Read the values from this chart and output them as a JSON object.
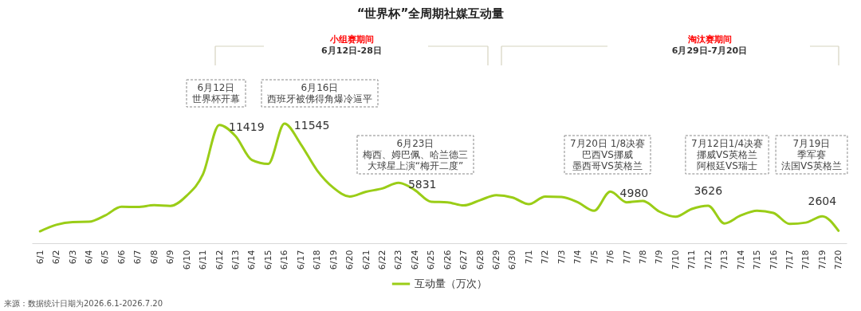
{
  "chart_data": {
    "type": "line",
    "title": "“世界杯”全周期社媒互动量",
    "categories": [
      "6/1",
      "6/2",
      "6/3",
      "6/4",
      "6/5",
      "6/6",
      "6/7",
      "6/8",
      "6/9",
      "6/10",
      "6/11",
      "6/12",
      "6/13",
      "6/14",
      "6/15",
      "6/16",
      "6/17",
      "6/18",
      "6/19",
      "6/20",
      "6/21",
      "6/22",
      "6/23",
      "6/24",
      "6/25",
      "6/26",
      "6/27",
      "6/28",
      "6/29",
      "6/30",
      "7/1",
      "7/2",
      "7/3",
      "7/4",
      "7/5",
      "7/6",
      "7/7",
      "7/8",
      "7/9",
      "7/10",
      "7/11",
      "7/12",
      "7/13",
      "7/14",
      "7/15",
      "7/16",
      "7/17",
      "7/18",
      "7/19",
      "7/20"
    ],
    "series": [
      {
        "name": "互动量（万次）",
        "color": "#9acd17",
        "values": [
          1150,
          1780,
          2040,
          2070,
          2680,
          3520,
          3500,
          3670,
          3600,
          4590,
          6660,
          11419,
          10330,
          8030,
          7650,
          11545,
          9560,
          7040,
          5360,
          4510,
          4970,
          5280,
          5831,
          5130,
          4000,
          3950,
          3650,
          4150,
          4640,
          4410,
          3770,
          4510,
          4460,
          3950,
          3140,
          4980,
          3950,
          4080,
          3060,
          2550,
          3310,
          3626,
          1910,
          2680,
          3140,
          2930,
          1860,
          1990,
          2604,
          1200
        ],
        "value_labels": [
          null,
          null,
          null,
          null,
          null,
          null,
          null,
          null,
          null,
          null,
          null,
          "11419",
          null,
          null,
          null,
          "11545",
          null,
          null,
          null,
          null,
          null,
          null,
          "5831",
          null,
          null,
          null,
          null,
          null,
          null,
          null,
          null,
          null,
          null,
          null,
          null,
          "4980",
          null,
          null,
          null,
          null,
          null,
          "3626",
          null,
          null,
          null,
          null,
          null,
          null,
          "2604",
          null
        ]
      }
    ],
    "tick_labels": "x",
    "legend": "bottom",
    "annotations": [
      "6月12日世界杯开幕",
      "6月16日西班牙被佛得角爆冷逼平",
      "6月23日梅西、姆巴佩、哈兰德三大球星上演“梅开二度”",
      "7月20日 1/8决赛巴西VS挪威墨西哥VS英格兰",
      "7月12日1/4决赛挪威VS英格兰阿根廷VS瑞士",
      "7月19日季军赛法国VS英格兰",
      "小组赛期间",
      "6月12日-28日",
      "淘汰赛期间",
      "6月29日-7月20日",
      "来源：数据统计日期为2026.6.1-2026.7.20"
    ]
  }
}
